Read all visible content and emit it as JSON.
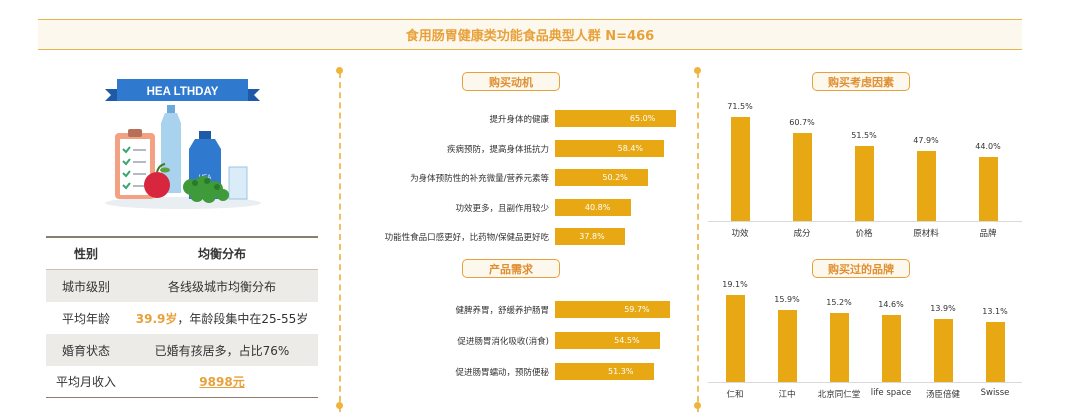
{
  "title": "食用肠胃健康类功能食品典型人群 N=466",
  "hero": {
    "banner": "HEA LTHDAY",
    "bottle_label": "HEA"
  },
  "demographics": {
    "header": {
      "col1": "性别",
      "col2": "均衡分布"
    },
    "rows": [
      {
        "label": "城市级别",
        "value": "各线级城市均衡分布"
      },
      {
        "label": "平均年龄",
        "value_highlight": "39.9岁",
        "value_rest": "，年龄段集中在25-55岁"
      },
      {
        "label": "婚育状态",
        "value": "已婚有孩居多，占比76%"
      },
      {
        "label": "平均月收入",
        "value_highlight": "9898元"
      }
    ]
  },
  "panels": {
    "motivation": "购买动机",
    "needs": "产品需求",
    "factors": "购买考虑因素",
    "brands": "购买过的品牌"
  },
  "chart_data": [
    {
      "type": "bar",
      "orientation": "horizontal",
      "title": "购买动机",
      "categories": [
        "提升身体的健康",
        "疾病预防，提高身体抵抗力",
        "为身体预防性的补充微量/营养元素等",
        "功效更多，且副作用较少",
        "功能性食品口感更好，比药物/保健品更好吃"
      ],
      "values": [
        65.0,
        58.4,
        50.2,
        40.8,
        37.8
      ],
      "value_labels": [
        "65.0%",
        "58.4%",
        "50.2%",
        "40.8%",
        "37.8%"
      ]
    },
    {
      "type": "bar",
      "orientation": "horizontal",
      "title": "产品需求",
      "categories": [
        "健脾养胃，舒缓养护肠胃",
        "促进肠胃消化吸收(消食)",
        "促进肠胃蠕动，预防便秘"
      ],
      "values": [
        59.7,
        54.5,
        51.3
      ],
      "value_labels": [
        "59.7%",
        "54.5%",
        "51.3%"
      ]
    },
    {
      "type": "bar",
      "orientation": "vertical",
      "title": "购买考虑因素",
      "categories": [
        "功效",
        "成分",
        "价格",
        "原材料",
        "品牌"
      ],
      "values": [
        71.5,
        60.7,
        51.5,
        47.9,
        44.0
      ],
      "value_labels": [
        "71.5%",
        "60.7%",
        "51.5%",
        "47.9%",
        "44.0%"
      ]
    },
    {
      "type": "bar",
      "orientation": "vertical",
      "title": "购买过的品牌",
      "categories": [
        "仁和",
        "江中",
        "北京同仁堂",
        "life space",
        "汤臣倍健",
        "Swisse"
      ],
      "values": [
        19.1,
        15.9,
        15.2,
        14.6,
        13.9,
        13.1
      ],
      "value_labels": [
        "19.1%",
        "15.9%",
        "15.2%",
        "14.6%",
        "13.9%",
        "13.1%"
      ]
    }
  ]
}
